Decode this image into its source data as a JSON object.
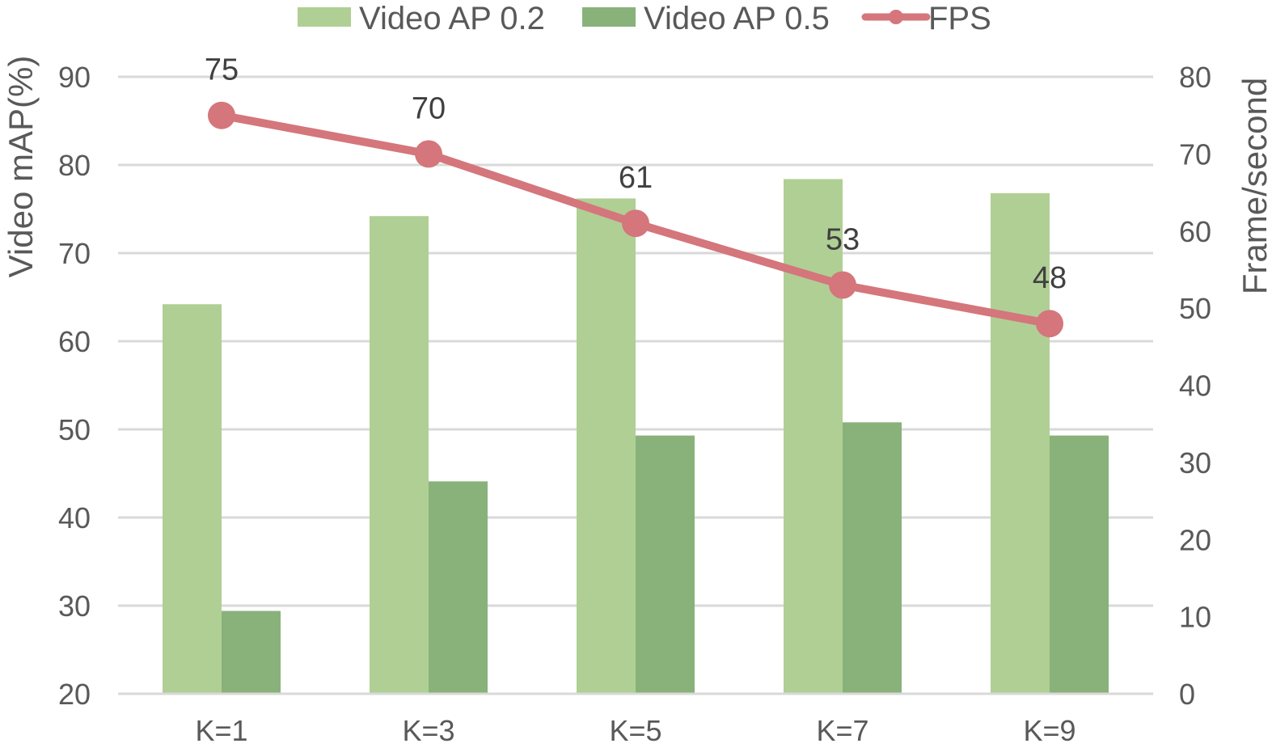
{
  "chart_data": {
    "type": "bar",
    "categories": [
      "K=1",
      "K=3",
      "K=5",
      "K=7",
      "K=9"
    ],
    "series": [
      {
        "name": "Video AP 0.2",
        "type": "bar",
        "axis": "left",
        "color": "#b0cf95",
        "values": [
          64.2,
          74.2,
          76.2,
          78.4,
          76.8
        ]
      },
      {
        "name": "Video AP 0.5",
        "type": "bar",
        "axis": "left",
        "color": "#88b27a",
        "values": [
          29.4,
          44.1,
          49.3,
          50.8,
          49.3
        ]
      },
      {
        "name": "FPS",
        "type": "line",
        "axis": "right",
        "color": "#d4767b",
        "values": [
          75,
          70,
          61,
          53,
          48
        ],
        "data_labels": [
          "75",
          "70",
          "61",
          "53",
          "48"
        ]
      }
    ],
    "ylabel": "Video mAP(%)",
    "y2label": "Frame/second",
    "ylim": [
      20,
      90
    ],
    "y2lim": [
      0,
      80
    ],
    "yticks": [
      "20",
      "30",
      "40",
      "50",
      "60",
      "70",
      "80",
      "90"
    ],
    "y2ticks": [
      "0",
      "10",
      "20",
      "30",
      "40",
      "50",
      "60",
      "70",
      "80"
    ],
    "grid": true,
    "legend_position": "top-center",
    "gridline_color": "#d9d9d9"
  }
}
